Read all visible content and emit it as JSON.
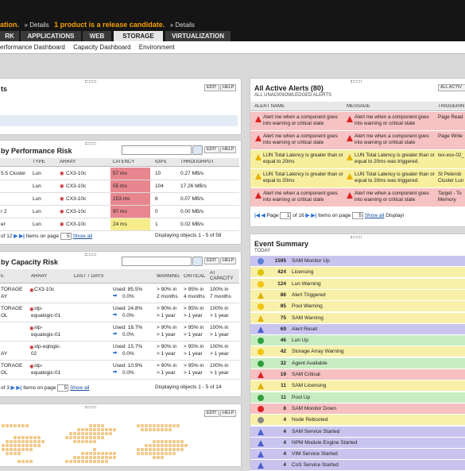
{
  "header": {
    "notice_prefix": "ation.",
    "notice_crumb": "» Details",
    "notice_main": "1 product is a release candidate.",
    "notice_crumb2": "» Details"
  },
  "tabs": [
    {
      "label": "RK",
      "active": false
    },
    {
      "label": "APPLICATIONS",
      "active": false
    },
    {
      "label": "WEB",
      "active": false
    },
    {
      "label": "STORAGE",
      "active": true
    },
    {
      "label": "VIRTUALIZATION",
      "active": false
    }
  ],
  "subnav": [
    "erformance Dashboard",
    "Capacity Dashboard",
    "Environment"
  ],
  "buttons": {
    "edit": "EDIT",
    "help": "HELP",
    "all_active": "ALL ACTIV"
  },
  "top_left_panel": {
    "title": "ts"
  },
  "perf_panel": {
    "title": "by Performance Risk",
    "columns": [
      "",
      "TYPE",
      "ARRAY",
      "LATENCY",
      "IOPS",
      "THROUGHPUT"
    ],
    "rows": [
      {
        "name": "5.5 Cluster",
        "type": "Lun",
        "array": "CX3-10c",
        "latency": "57 ms",
        "latency_color": "#e8868f",
        "iops": "10",
        "throughput": "0.27 MB/s"
      },
      {
        "name": "",
        "type": "Lun",
        "array": "CX3-10c",
        "latency": "55 ms",
        "latency_color": "#e8868f",
        "iops": "104",
        "throughput": "17.26 MB/s"
      },
      {
        "name": "",
        "type": "Lun",
        "array": "CX3-10c",
        "latency": "153 ms",
        "latency_color": "#e8868f",
        "iops": "6",
        "throughput": "0.07 MB/s"
      },
      {
        "name": "r 2",
        "type": "Lun",
        "array": "CX3-10c",
        "latency": "97 ms",
        "latency_color": "#e8868f",
        "iops": "0",
        "throughput": "0.00 MB/s"
      },
      {
        "name": "er",
        "type": "Lun",
        "array": "CX3-10c",
        "latency": "24 ms",
        "latency_color": "#f7ec8a",
        "iops": "1",
        "throughput": "0.02 MB/s"
      }
    ],
    "pager_page": "of 12",
    "pager_items_label": "Items on page",
    "pager_items": "5",
    "pager_show_all": "Show all",
    "pager_status": "Displaying objects 1 - 5 of 58"
  },
  "cap_panel": {
    "title": "by Capacity Risk",
    "columns": [
      "E",
      "ARRAY",
      "LAST 7 DAYS",
      "WARNING",
      "CRITICAL",
      "AT CAPACITY"
    ],
    "rows": [
      {
        "name1": "TORAGE",
        "name2": "AY",
        "array1": "CX3-10c",
        "array2": "",
        "used": "Used: 85.5%",
        "trend": "0.0%",
        "warn1": "> 90% in",
        "warn2": "2 months",
        "crit1": "> 95% in",
        "crit2": "4 months",
        "cap1": "100% in",
        "cap2": "7 months"
      },
      {
        "name1": "TORAGE",
        "name2": "OL",
        "array1": "stp-",
        "array2": "equalogic-01",
        "used": "Used: 24.8%",
        "trend": "0.0%",
        "warn1": "> 90% in",
        "warn2": "> 1 year",
        "crit1": "> 95% in",
        "crit2": "> 1 year",
        "cap1": "100% in",
        "cap2": "> 1 year"
      },
      {
        "name1": "",
        "name2": "",
        "array1": "stp-",
        "array2": "equalogic-01",
        "used": "Used: 18.7%",
        "trend": "0.0%",
        "warn1": "> 90% in",
        "warn2": "> 1 year",
        "crit1": "> 95% in",
        "crit2": "> 1 year",
        "cap1": "100% in",
        "cap2": "> 1 year"
      },
      {
        "name1": "",
        "name2": "AY",
        "array1": "stp-eqlogic-",
        "array2": "02",
        "used": "Used: 15.7%",
        "trend": "0.0%",
        "warn1": "> 90% in",
        "warn2": "> 1 year",
        "crit1": "> 95% in",
        "crit2": "> 1 year",
        "cap1": "100% in",
        "cap2": "> 1 year"
      },
      {
        "name1": "TORAGE",
        "name2": "OL",
        "array1": "stp-",
        "array2": "equalogic-01",
        "used": "Used: 10.9%",
        "trend": "0.0%",
        "warn1": "> 90% in",
        "warn2": "> 1 year",
        "crit1": "> 95% in",
        "crit2": "> 1 year",
        "cap1": "100% in",
        "cap2": "> 1 year"
      }
    ],
    "pager_page": "of 3",
    "pager_items_label": "Items on page",
    "pager_items": "5",
    "pager_show_all": "Show all",
    "pager_status": "Displaying objects 1 - 5 of 14"
  },
  "alerts_panel": {
    "title": "All Active Alerts (80)",
    "subtitle": "ALL UNACKNOWLEDGED ALERTS",
    "columns": [
      "ALERT NAME",
      "MESSAGE",
      "TRIGGERIN"
    ],
    "rows": [
      {
        "name": "Alert me when a component goes into warning or critical state",
        "message": "Alert me when a component goes into warning or critical state",
        "trigger": "Page Read",
        "color": "#f6c2c2",
        "icon": "#d22"
      },
      {
        "name": "Alert me when a component goes into warning or critical state",
        "message": "Alert me when a component goes into warning or critical state",
        "trigger": "Page Write",
        "color": "#f6c2c2",
        "icon": "#d22"
      },
      {
        "name": "LUN Total Latency is greater than or equal to 20ms",
        "message": "LUN Total Latency is greater than or equal to 20ms was triggered.",
        "trigger": "tex-esx-02_",
        "color": "#f7ef9e",
        "icon": "#e8b000"
      },
      {
        "name": "LUN Total Latency is greater than or equal to 20ms",
        "message": "LUN Total Latency is greater than or equal to 20ms was triggered.",
        "trigger": "St Petersb Cluster Lun",
        "color": "#f7ef9e",
        "icon": "#e8b000"
      },
      {
        "name": "Alert me when a component goes into warning or critical state",
        "message": "Alert me when a component goes into warning or critical state",
        "trigger": "Target - To Memory",
        "color": "#f6c2c2",
        "icon": "#d22"
      }
    ],
    "pager_page": "Page",
    "pager_num": "1",
    "pager_of": "of 16",
    "pager_items_label": "Items on page",
    "pager_items": "5",
    "pager_show_all": "Show all",
    "pager_status": "Displayi"
  },
  "events_panel": {
    "title": "Event Summary",
    "subtitle": "TODAY",
    "rows": [
      {
        "count": "1595",
        "label": "SAM Monitor Up",
        "bg": "#c9c4ee",
        "icon": "#5a7fd6",
        "shape": "circle"
      },
      {
        "count": "424",
        "label": "Licensing",
        "bg": "#f8f0a8",
        "icon": "#d9c400",
        "shape": "circle"
      },
      {
        "count": "124",
        "label": "Lun Warning",
        "bg": "#f8f0a8",
        "icon": "#f1c40f",
        "shape": "circle"
      },
      {
        "count": "86",
        "label": "Alert Triggered",
        "bg": "#f8f0a8",
        "icon": "#e0b000",
        "shape": "tri"
      },
      {
        "count": "85",
        "label": "Pool Warning",
        "bg": "#f8f0a8",
        "icon": "#f1c40f",
        "shape": "circle"
      },
      {
        "count": "75",
        "label": "SAM Warning",
        "bg": "#f8f0a8",
        "icon": "#e0b000",
        "shape": "tri"
      },
      {
        "count": "69",
        "label": "Alert Reset",
        "bg": "#c9c4ee",
        "icon": "#4a5fd0",
        "shape": "tri"
      },
      {
        "count": "46",
        "label": "Lun Up",
        "bg": "#c8ecc2",
        "icon": "#2e9e3a",
        "shape": "circle"
      },
      {
        "count": "42",
        "label": "Storage Array Warning",
        "bg": "#f8f0a8",
        "icon": "#f1c40f",
        "shape": "circle"
      },
      {
        "count": "32",
        "label": "Agent Available",
        "bg": "#c8ecc2",
        "icon": "#2e9e3a",
        "shape": "circle"
      },
      {
        "count": "19",
        "label": "SAM Critical",
        "bg": "#f6c0c0",
        "icon": "#d22",
        "shape": "tri"
      },
      {
        "count": "11",
        "label": "SAM Licensing",
        "bg": "#f8f0a8",
        "icon": "#e0b000",
        "shape": "tri"
      },
      {
        "count": "11",
        "label": "Pool Up",
        "bg": "#c8ecc2",
        "icon": "#2e9e3a",
        "shape": "circle"
      },
      {
        "count": "8",
        "label": "SAM Monitor Down",
        "bg": "#f6c0c0",
        "icon": "#d22",
        "shape": "circle"
      },
      {
        "count": "4",
        "label": "Node Rebooted",
        "bg": "#f8f0a8",
        "icon": "#888",
        "shape": "circle"
      },
      {
        "count": "4",
        "label": "SAM Service Started",
        "bg": "#c9c4ee",
        "icon": "#4a5fd0",
        "shape": "tri"
      },
      {
        "count": "4",
        "label": "NPM Module Engine Started",
        "bg": "#c9c4ee",
        "icon": "#4a5fd0",
        "shape": "tri"
      },
      {
        "count": "4",
        "label": "VIM Service Started",
        "bg": "#c9c4ee",
        "icon": "#4a5fd0",
        "shape": "tri"
      },
      {
        "count": "4",
        "label": "CoS Service Started",
        "bg": "#c9c4ee",
        "icon": "#4a5fd0",
        "shape": "tri"
      }
    ]
  }
}
